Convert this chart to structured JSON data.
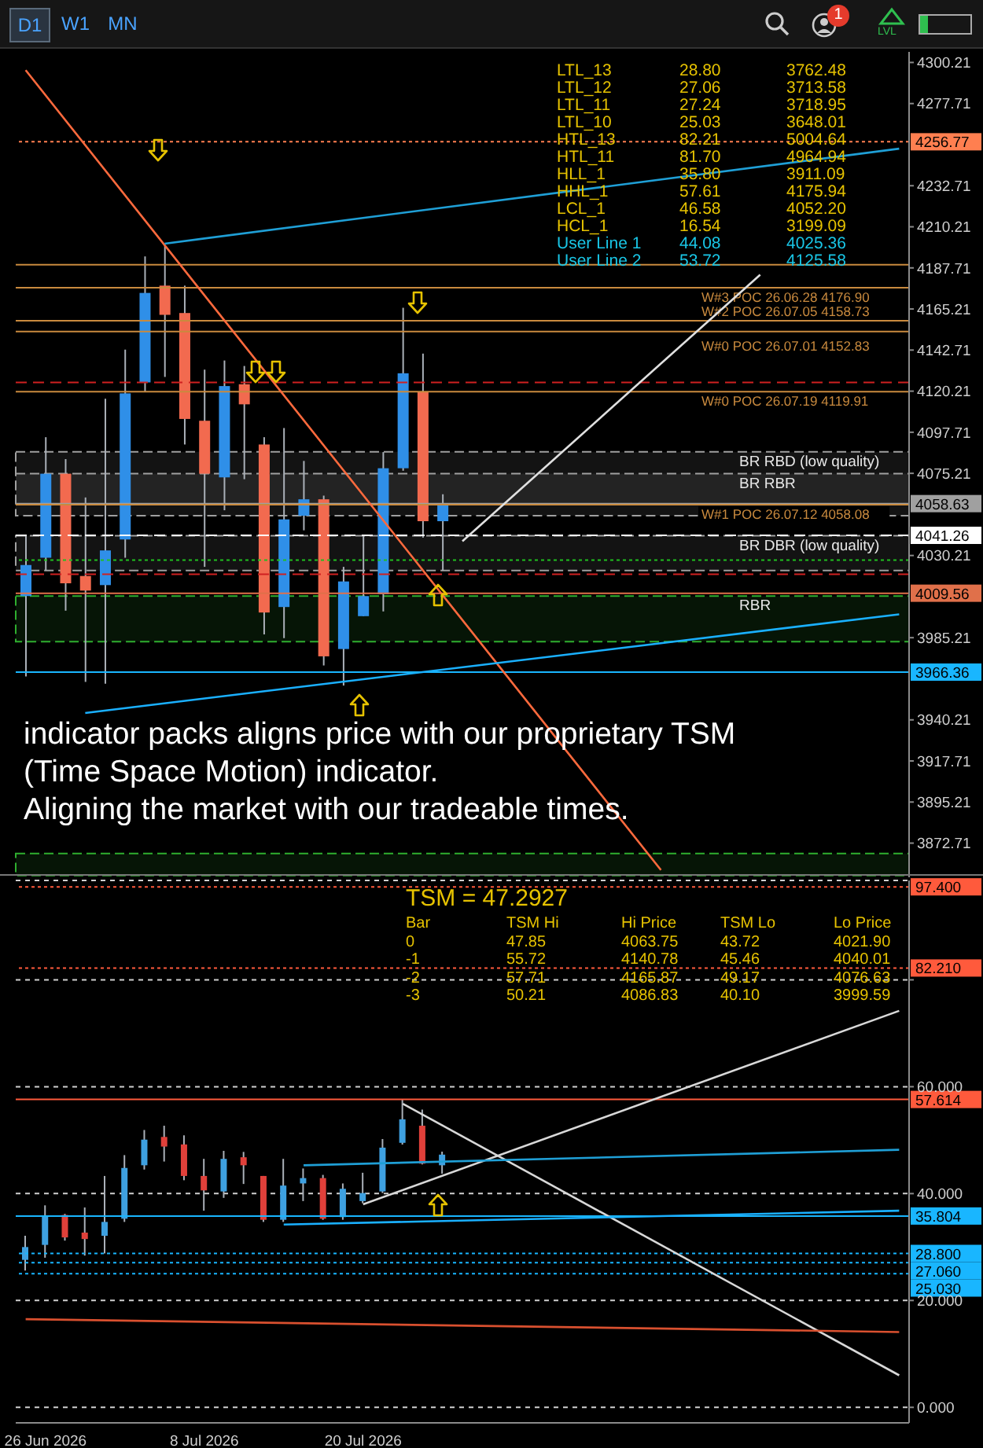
{
  "chart_data": [
    {
      "type": "candlestick",
      "categories": [
        null,
        null,
        null,
        null,
        null,
        null,
        null,
        null,
        null,
        null,
        null,
        null,
        null,
        null,
        null,
        null,
        null,
        null,
        null,
        null,
        null,
        null,
        null,
        null,
        null,
        null,
        null,
        null,
        null,
        null,
        null,
        null,
        null,
        null,
        null,
        null,
        null,
        null,
        null,
        null,
        null,
        null,
        null,
        null,
        null
      ],
      "ohlc": [
        [
          4008,
          4041,
          3964,
          4025
        ],
        [
          4029,
          4095,
          4022,
          4075
        ],
        [
          4075,
          4083,
          4000,
          4015
        ],
        [
          4019,
          4062,
          3961,
          4011
        ],
        [
          4014,
          4116,
          3960,
          4033
        ],
        [
          4039,
          4143,
          4029,
          4119
        ],
        [
          4125,
          4194,
          4120,
          4174
        ],
        [
          4178,
          4200,
          4128,
          4162
        ],
        [
          4163,
          4178,
          4091,
          4105
        ],
        [
          4104,
          4132,
          4024,
          4075
        ],
        [
          4073,
          4137,
          4055,
          4123
        ],
        [
          4124,
          4134,
          4072,
          4113
        ],
        [
          4091,
          4095,
          3987,
          3999
        ],
        [
          4002,
          4100,
          3985,
          4050
        ],
        [
          4052,
          4082,
          4044,
          4061
        ],
        [
          4061,
          4063,
          3970,
          3975
        ],
        [
          3979,
          4024,
          3959,
          4016
        ],
        [
          3997,
          4041,
          3997,
          4008
        ],
        [
          4009,
          4086.83,
          3999.59,
          4078
        ],
        [
          4078,
          4165.87,
          4076.63,
          4130
        ],
        [
          4120,
          4140.78,
          4040.01,
          4049
        ],
        [
          4049,
          4063.75,
          4021.9,
          4058.63
        ],
        null,
        null,
        null,
        null,
        null,
        null,
        null,
        null,
        null,
        null,
        null,
        null,
        null,
        null,
        null,
        null,
        null,
        null,
        null,
        null,
        null,
        null,
        null
      ],
      "colors": [
        "#2f8fe8",
        "#2f8fe8",
        "#f26a4f",
        "#f26a4f",
        "#2f8fe8",
        "#2f8fe8",
        "#2f8fe8",
        "#f26a4f",
        "#f26a4f",
        "#f26a4f",
        "#2f8fe8",
        "#f26a4f",
        "#f26a4f",
        "#2f8fe8",
        "#2f8fe8",
        "#f26a4f",
        "#2f8fe8",
        "#2f8fe8",
        "#2f8fe8",
        "#2f8fe8",
        "#f26a4f",
        "#2f8fe8",
        null,
        null,
        null,
        null,
        null,
        null,
        null,
        null,
        null,
        null,
        null,
        null,
        null,
        null,
        null,
        null,
        null,
        null,
        null,
        null,
        null,
        null,
        null
      ],
      "series": [
        {
          "type": "line",
          "color": "#ff6a3d",
          "values": [
            4296,
            null,
            null,
            null,
            null,
            null,
            null,
            null,
            null,
            null,
            null,
            null,
            null,
            null,
            null,
            null,
            null,
            null,
            null,
            null,
            null,
            null,
            null,
            null,
            null,
            null,
            null,
            null,
            null,
            null,
            null,
            null,
            3858,
            null,
            null,
            null,
            null,
            null,
            null,
            null,
            null,
            null,
            null,
            null,
            null
          ]
        },
        {
          "type": "line",
          "color": "#1f9fd6",
          "values": [
            null,
            null,
            null,
            null,
            null,
            null,
            null,
            4201,
            null,
            null,
            null,
            null,
            null,
            null,
            null,
            null,
            null,
            null,
            null,
            null,
            null,
            null,
            null,
            null,
            null,
            null,
            null,
            null,
            null,
            null,
            null,
            null,
            null,
            null,
            null,
            null,
            null,
            null,
            null,
            null,
            null,
            null,
            null,
            null,
            4253
          ]
        },
        {
          "type": "line",
          "color": "#1ab0ff",
          "values": [
            null,
            null,
            null,
            3944,
            null,
            null,
            null,
            null,
            null,
            null,
            null,
            null,
            null,
            null,
            null,
            null,
            null,
            null,
            null,
            null,
            null,
            null,
            null,
            null,
            null,
            null,
            null,
            null,
            null,
            null,
            null,
            null,
            null,
            null,
            null,
            null,
            null,
            null,
            null,
            null,
            null,
            null,
            null,
            null,
            3998
          ]
        },
        {
          "type": "line",
          "color": "#e0e0e0",
          "values": [
            null,
            null,
            null,
            null,
            null,
            null,
            null,
            null,
            null,
            null,
            null,
            null,
            null,
            null,
            null,
            null,
            null,
            null,
            null,
            null,
            null,
            null,
            4038,
            null,
            null,
            null,
            null,
            null,
            null,
            null,
            null,
            null,
            null,
            null,
            null,
            null,
            null,
            4184,
            null,
            null,
            null,
            null,
            null,
            null,
            null
          ]
        }
      ],
      "ylim": [
        3854,
        4306
      ],
      "yticks": [
        3872.71,
        3895.21,
        3917.71,
        3940.21,
        3985.21,
        4030.21,
        4075.21,
        4097.71,
        4120.21,
        4142.71,
        4165.21,
        4187.71,
        4210.21,
        4232.71,
        4277.71,
        4300.21
      ],
      "tick_labels": "y",
      "ref_lines": [
        {
          "axis": "y",
          "value": 4256.77,
          "label": "4256.77",
          "color": "#ff7f50",
          "line_style": "dotted"
        },
        {
          "axis": "y",
          "value": 4058.63,
          "label": "4058.63",
          "color": "#a0a0a0",
          "line_style": "solid"
        },
        {
          "axis": "y",
          "value": 4041.26,
          "label": "4041.26",
          "color": "#ffffff",
          "line_style": "dashed"
        },
        {
          "axis": "y",
          "value": 4009.56,
          "label": "4009.56",
          "color": "#e0704a",
          "line_style": "solid"
        },
        {
          "axis": "y",
          "value": 3966.36,
          "label": "3966.36",
          "color": "#19b6ff",
          "line_style": "solid"
        },
        {
          "axis": "y",
          "value": 4189.5,
          "label": null,
          "color": "#c98a3e",
          "line_style": "solid"
        },
        {
          "axis": "y",
          "value": 4176.9,
          "label": "W#3 POC 26.06.28 4176.90",
          "color": "#c98a3e",
          "line_style": "solid"
        },
        {
          "axis": "y",
          "value": 4158.73,
          "label": "W#2 POC 26.07.05 4158.73",
          "color": "#c98a3e",
          "line_style": "solid"
        },
        {
          "axis": "y",
          "value": 4152.83,
          "label": "W#0 POC 26.07.01 4152.83",
          "color": "#c98a3e",
          "line_style": "solid"
        },
        {
          "axis": "y",
          "value": 4119.91,
          "label": "W#0 POC 26.07.19 4119.91",
          "color": "#c98a3e",
          "line_style": "solid"
        },
        {
          "axis": "y",
          "value": 4058.08,
          "label": "W#1 POC 26.07.12 4058.08",
          "color": "#c98a3e",
          "line_style": "solid"
        },
        {
          "axis": "y",
          "value": 4125,
          "label": null,
          "color": "#d02020",
          "line_style": "dashed"
        },
        {
          "axis": "y",
          "value": 4020,
          "label": null,
          "color": "#d02020",
          "line_style": "dashed"
        },
        {
          "axis": "y",
          "value": 4027.7,
          "label": null,
          "color": "#20c020",
          "line_style": "dotted"
        }
      ],
      "bands": [
        {
          "axis": "y",
          "from": 4058,
          "to": 4087,
          "label": "BR RBD (low quality)",
          "color": "#a0a0a0"
        },
        {
          "axis": "y",
          "from": 4052,
          "to": 4075,
          "label": "BR RBR",
          "color": "#a0a0a0"
        },
        {
          "axis": "y",
          "from": 4022,
          "to": 4041,
          "label": "BR DBR (low quality)",
          "color": "#a0a0a0"
        },
        {
          "axis": "y",
          "from": 3983,
          "to": 4008,
          "label": "RBR",
          "color": "#2fae2f"
        },
        {
          "axis": "y",
          "from": 3855,
          "to": 3867,
          "label": null,
          "color": "#2fae2f"
        }
      ],
      "annotations": [
        "D1",
        "W1",
        "MN",
        "1",
        "LVL",
        "LTL_13",
        "28.80",
        "3762.48",
        "LTL_12",
        "27.06",
        "3713.58",
        "LTL_11",
        "27.24",
        "3718.95",
        "LTL_10",
        "25.03",
        "3648.01",
        "HTL_13",
        "82.21",
        "5004.64",
        "HTL_11",
        "81.70",
        "4964.94",
        "HLL_1",
        "35.80",
        "3911.09",
        "HHL_1",
        "57.61",
        "4175.94",
        "LCL_1",
        "46.58",
        "4052.20",
        "HCL_1",
        "16.54",
        "3199.09",
        "User Line 1",
        "44.08",
        "4025.36",
        "User Line 2",
        "53.72",
        "4125.58",
        "indicator packs aligns price with our proprietary TSM",
        "(Time Space Motion) indicator.",
        "Aligning the market with our tradeable times."
      ]
    },
    {
      "type": "candlestick",
      "categories": [
        null,
        "26 Jun 2026",
        null,
        null,
        null,
        null,
        null,
        null,
        null,
        "8 Jul 2026",
        null,
        null,
        null,
        null,
        null,
        null,
        null,
        "20 Jul 2026",
        null,
        null,
        null,
        null,
        null,
        null,
        null,
        null,
        null,
        null,
        null,
        null,
        null,
        null,
        null,
        null,
        null,
        null,
        null,
        null,
        null,
        null,
        null,
        null,
        null,
        null,
        null
      ],
      "ohlc": [
        [
          27.6,
          32.1,
          25.6,
          30.0
        ],
        [
          30.4,
          37.8,
          28.0,
          35.9
        ],
        [
          36.0,
          36.2,
          31.2,
          31.8
        ],
        [
          32.7,
          37.4,
          28.4,
          31.5
        ],
        [
          32.1,
          43.3,
          28.8,
          34.7
        ],
        [
          35.3,
          47.2,
          34.7,
          44.8
        ],
        [
          45.3,
          51.9,
          44.5,
          50.1
        ],
        [
          50.6,
          52.7,
          46.0,
          48.8
        ],
        [
          49.2,
          50.9,
          42.5,
          43.3
        ],
        [
          43.3,
          46.5,
          36.8,
          40.6
        ],
        [
          40.4,
          48.0,
          39.2,
          46.5
        ],
        [
          46.8,
          47.8,
          41.8,
          45.3
        ],
        [
          43.3,
          43.3,
          34.7,
          35.1
        ],
        [
          35.1,
          46.5,
          34.7,
          41.5
        ],
        [
          41.9,
          44.7,
          38.6,
          42.9
        ],
        [
          42.9,
          43.5,
          35.1,
          35.3
        ],
        [
          35.6,
          41.9,
          35.1,
          40.9
        ],
        [
          38.6,
          43.9,
          38.2,
          40.1
        ],
        [
          40.4,
          50.21,
          40.1,
          48.6
        ],
        [
          49.5,
          57.71,
          49.17,
          53.9
        ],
        [
          52.7,
          55.72,
          45.46,
          45.6
        ],
        [
          45.3,
          47.85,
          43.72,
          47.29
        ],
        null,
        null,
        null,
        null,
        null,
        null,
        null,
        null,
        null,
        null,
        null,
        null,
        null,
        null,
        null,
        null,
        null,
        null,
        null,
        null,
        null,
        null,
        null
      ],
      "colors": [
        "#3ea0e0",
        "#3ea0e0",
        "#e0403a",
        "#e0403a",
        "#3ea0e0",
        "#3ea0e0",
        "#3ea0e0",
        "#e0403a",
        "#e0403a",
        "#e0403a",
        "#3ea0e0",
        "#e0403a",
        "#e0403a",
        "#3ea0e0",
        "#3ea0e0",
        "#e0403a",
        "#3ea0e0",
        "#3ea0e0",
        "#3ea0e0",
        "#3ea0e0",
        "#e0403a",
        "#3ea0e0",
        null,
        null,
        null,
        null,
        null,
        null,
        null,
        null,
        null,
        null,
        null,
        null,
        null,
        null,
        null,
        null,
        null,
        null,
        null,
        null,
        null,
        null,
        null
      ],
      "series": [
        {
          "type": "line",
          "color": "#d8d8d8",
          "values": [
            null,
            null,
            null,
            null,
            null,
            null,
            null,
            null,
            null,
            null,
            null,
            null,
            null,
            null,
            null,
            null,
            null,
            null,
            null,
            56.8,
            null,
            null,
            null,
            null,
            null,
            null,
            null,
            null,
            null,
            null,
            null,
            null,
            null,
            null,
            null,
            null,
            null,
            null,
            null,
            null,
            null,
            null,
            null,
            null,
            6.0
          ]
        },
        {
          "type": "line",
          "color": "#d8d8d8",
          "values": [
            null,
            null,
            null,
            null,
            null,
            null,
            null,
            null,
            null,
            null,
            null,
            null,
            null,
            null,
            null,
            null,
            null,
            38.0,
            null,
            null,
            null,
            null,
            null,
            null,
            null,
            null,
            null,
            null,
            null,
            null,
            null,
            null,
            null,
            null,
            null,
            null,
            null,
            null,
            null,
            null,
            null,
            null,
            null,
            null,
            74.2
          ]
        },
        {
          "type": "line",
          "color": "#1f9fd6",
          "values": [
            null,
            null,
            null,
            null,
            null,
            null,
            null,
            null,
            null,
            null,
            null,
            null,
            null,
            null,
            45.3,
            null,
            null,
            null,
            null,
            null,
            null,
            null,
            null,
            null,
            null,
            null,
            null,
            null,
            null,
            null,
            null,
            null,
            null,
            null,
            null,
            null,
            null,
            null,
            null,
            null,
            null,
            null,
            null,
            null,
            48.2
          ]
        },
        {
          "type": "line",
          "color": "#1ab0ff",
          "values": [
            null,
            null,
            null,
            null,
            null,
            null,
            null,
            null,
            null,
            null,
            null,
            null,
            null,
            34.2,
            null,
            null,
            null,
            null,
            null,
            null,
            null,
            null,
            null,
            null,
            null,
            null,
            null,
            null,
            null,
            null,
            null,
            null,
            null,
            null,
            null,
            null,
            null,
            null,
            null,
            null,
            null,
            null,
            null,
            null,
            36.8
          ]
        },
        {
          "type": "line",
          "color": "#d9502f",
          "values": [
            16.5,
            null,
            null,
            null,
            null,
            null,
            null,
            null,
            null,
            null,
            null,
            null,
            null,
            null,
            null,
            null,
            null,
            null,
            null,
            null,
            null,
            null,
            null,
            null,
            null,
            null,
            null,
            null,
            null,
            null,
            null,
            null,
            null,
            null,
            null,
            null,
            null,
            null,
            null,
            null,
            null,
            null,
            null,
            null,
            14.1
          ]
        }
      ],
      "ylim": [
        -2.9,
        98.6
      ],
      "yticks": [
        {
          "value": 0,
          "label": "0.000"
        },
        {
          "value": 20,
          "label": "20.000"
        },
        {
          "value": 40,
          "label": "40.000"
        },
        {
          "value": 60,
          "label": "60.000"
        },
        {
          "value": 80,
          "label": null
        }
      ],
      "grid": "y",
      "ref_lines": [
        {
          "axis": "y",
          "value": 97.4,
          "label": "97.400",
          "color": "#ff5a3c",
          "line_style": "dotted"
        },
        {
          "axis": "y",
          "value": 82.21,
          "label": "82.210",
          "color": "#ff5a3c",
          "line_style": "dotted"
        },
        {
          "axis": "y",
          "value": 57.614,
          "label": "57.614",
          "color": "#ff5a3c",
          "line_style": "solid"
        },
        {
          "axis": "y",
          "value": 35.804,
          "label": "35.804",
          "color": "#19b6ff",
          "line_style": "solid"
        },
        {
          "axis": "y",
          "value": 28.8,
          "label": "28.800",
          "color": "#19b6ff",
          "line_style": "dotted"
        },
        {
          "axis": "y",
          "value": 27.06,
          "label": "27.060",
          "color": "#19b6ff",
          "line_style": "dotted"
        },
        {
          "axis": "y",
          "value": 25.03,
          "label": "25.030",
          "color": "#19b6ff",
          "line_style": "dotted"
        }
      ],
      "annotations": [
        "TSM = 47.2927",
        "Bar",
        "TSM Hi",
        "Hi Price",
        "TSM Lo",
        "Lo Price",
        "0",
        "47.85",
        "4063.75",
        "43.72",
        "4021.90",
        "-1",
        "55.72",
        "4140.78",
        "45.46",
        "4040.01",
        "-2",
        "57.71",
        "4165.87",
        "49.17",
        "4076.63",
        "-3",
        "50.21",
        "4086.83",
        "40.10",
        "3999.59"
      ]
    }
  ]
}
